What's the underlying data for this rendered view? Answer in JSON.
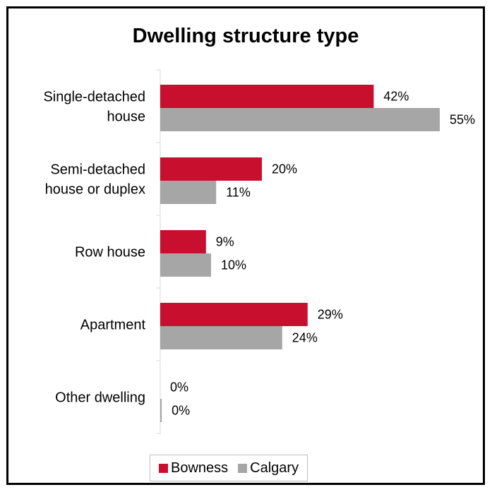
{
  "chart_data": {
    "type": "bar",
    "orientation": "horizontal",
    "title": "Dwelling structure type",
    "categories": [
      [
        "Single-detached",
        "house"
      ],
      [
        "Semi-detached",
        "house or duplex"
      ],
      [
        "Row house"
      ],
      [
        "Apartment"
      ],
      [
        "Other dwelling"
      ]
    ],
    "series": [
      {
        "name": "Bowness",
        "color": "#c8102e",
        "values": [
          42,
          20,
          9,
          29,
          0
        ],
        "labels": [
          "42%",
          "20%",
          "9%",
          "29%",
          "0%"
        ]
      },
      {
        "name": "Calgary",
        "color": "#a6a6a6",
        "values": [
          55,
          11,
          10,
          24,
          0.3
        ],
        "labels": [
          "55%",
          "11%",
          "10%",
          "24%",
          "0%"
        ]
      }
    ],
    "xlim": [
      0,
      60
    ],
    "grid": false,
    "legend_position": "bottom"
  }
}
